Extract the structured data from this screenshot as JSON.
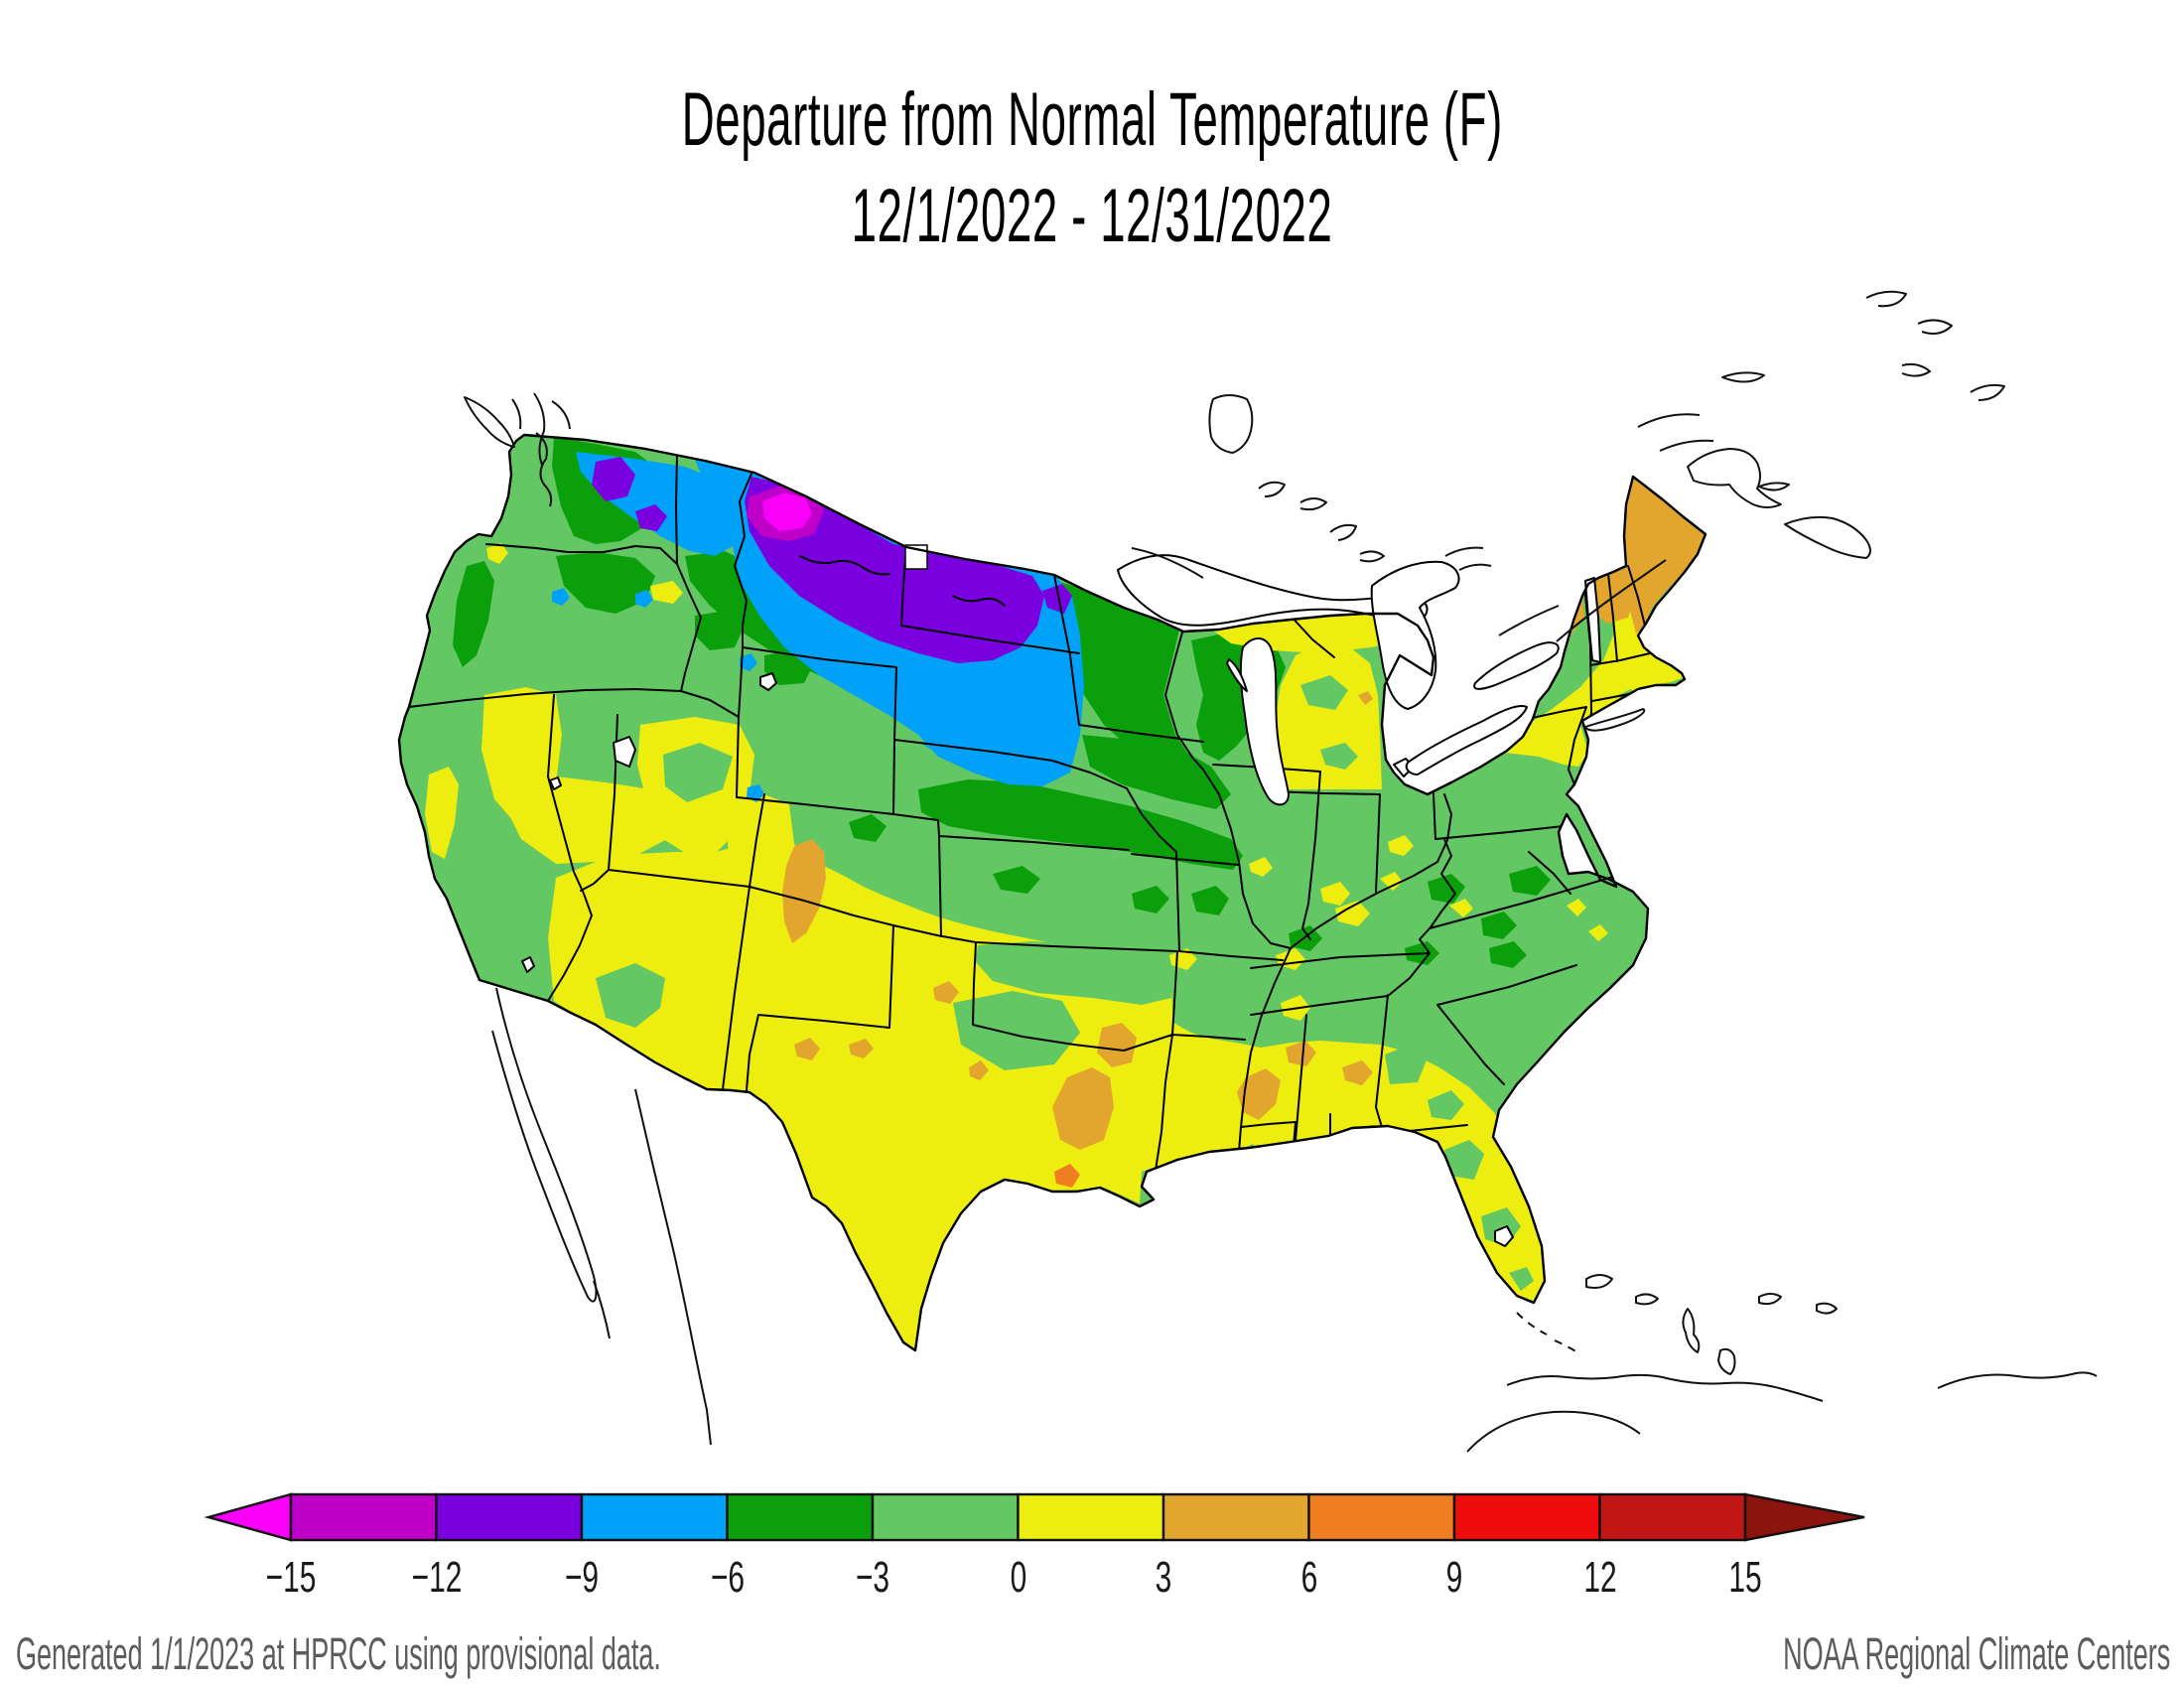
{
  "title": {
    "line1": "Departure from Normal Temperature (F)",
    "line2": "12/1/2022 - 12/31/2022"
  },
  "map": {
    "region": "Contiguous United States",
    "kind": "filled temperature-departure contour map with state borders"
  },
  "legend": {
    "ticks": [
      "−15",
      "−12",
      "−9",
      "−6",
      "−3",
      "0",
      "3",
      "6",
      "9",
      "12",
      "15"
    ],
    "segments": [
      {
        "id": "below-neg15",
        "range": "< -15",
        "color": "#F900F9",
        "shape": "left-arrow"
      },
      {
        "id": "neg15-neg12",
        "range": "-15 to -12",
        "color": "#BE00C8",
        "shape": "box"
      },
      {
        "id": "neg12-neg9",
        "range": "-12 to -9",
        "color": "#7B00E0",
        "shape": "box"
      },
      {
        "id": "neg9-neg6",
        "range": "-9 to -6",
        "color": "#00A1F9",
        "shape": "box"
      },
      {
        "id": "neg6-neg3",
        "range": "-6 to -3",
        "color": "#0BA00B",
        "shape": "box"
      },
      {
        "id": "neg3-0",
        "range": "-3 to 0",
        "color": "#63C764",
        "shape": "box"
      },
      {
        "id": "0-3",
        "range": "0 to 3",
        "color": "#EDED10",
        "shape": "box"
      },
      {
        "id": "3-6",
        "range": "3 to 6",
        "color": "#E2A62E",
        "shape": "box"
      },
      {
        "id": "6-9",
        "range": "6 to 9",
        "color": "#F07D1F",
        "shape": "box"
      },
      {
        "id": "9-12",
        "range": "9 to 12",
        "color": "#EE0C0C",
        "shape": "box"
      },
      {
        "id": "12-15",
        "range": "12 to 15",
        "color": "#C01616",
        "shape": "box"
      },
      {
        "id": "above-15",
        "range": "> 15",
        "color": "#8B140E",
        "shape": "right-arrow"
      }
    ]
  },
  "footer": {
    "left": "Generated 1/1/2023 at HPRCC using provisional data.",
    "right": "NOAA Regional Climate Centers"
  }
}
